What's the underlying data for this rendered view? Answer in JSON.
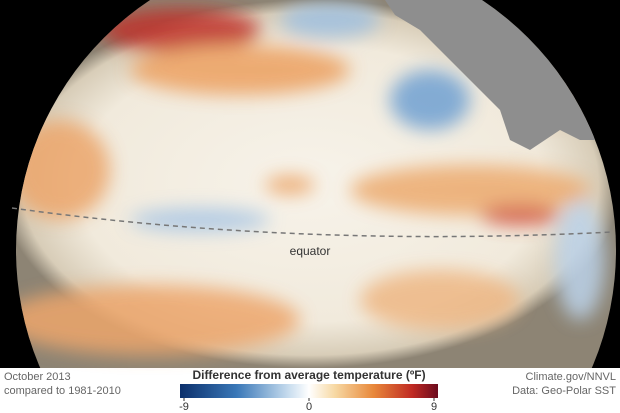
{
  "map": {
    "annotation": "equator"
  },
  "footer": {
    "date": "October 2013",
    "baseline": "compared to 1981-2010",
    "credit": "Climate.gov/NNVL",
    "source": "Data: Geo-Polar SST"
  },
  "legend": {
    "title": "Difference from average temperature (ºF)",
    "range": [
      -9,
      9
    ],
    "ticks": [
      -9,
      0,
      9
    ]
  }
}
